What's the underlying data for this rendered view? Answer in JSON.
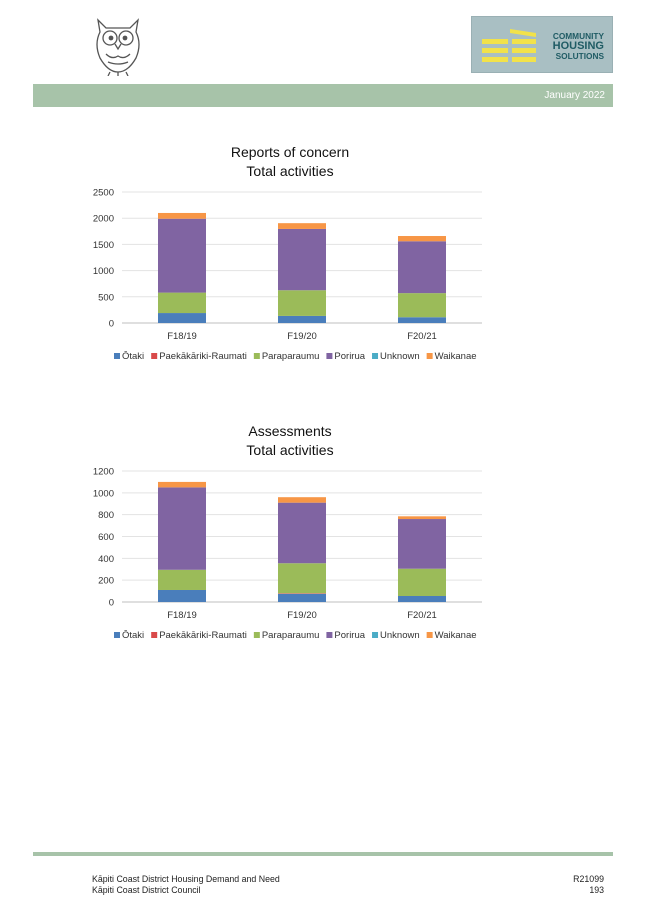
{
  "header": {
    "owl_logo": "owl-logo",
    "brand": {
      "line1": "COMMUNITY",
      "line2": "HOUSING",
      "line3": "SOLUTIONS"
    },
    "date": "January 2022"
  },
  "charts": [
    {
      "title_line1": "Reports of concern",
      "title_line2": "Total activities"
    },
    {
      "title_line1": "Assessments",
      "title_line2": "Total activities"
    }
  ],
  "chart_data": [
    {
      "type": "bar",
      "stacked": true,
      "title": "Reports of concern Total activities",
      "categories": [
        "F18/19",
        "F19/20",
        "F20/21"
      ],
      "ylim": [
        0,
        2500
      ],
      "yticks": [
        0,
        500,
        1000,
        1500,
        2000,
        2500
      ],
      "grid": true,
      "legend": "bottom",
      "series": [
        {
          "name": "Ōtaki",
          "color": "#4a7ebb",
          "values": [
            190,
            135,
            110
          ]
        },
        {
          "name": "Paekākāriki-Raumati",
          "color": "#d94a4a",
          "values": [
            0,
            0,
            0
          ]
        },
        {
          "name": "Paraparaumu",
          "color": "#9bbb59",
          "values": [
            390,
            490,
            460
          ]
        },
        {
          "name": "Porirua",
          "color": "#8064a2",
          "values": [
            1410,
            1170,
            990
          ]
        },
        {
          "name": "Unknown",
          "color": "#4bacc6",
          "values": [
            0,
            0,
            0
          ]
        },
        {
          "name": "Waikanae",
          "color": "#f79646",
          "values": [
            110,
            110,
            100
          ]
        }
      ]
    },
    {
      "type": "bar",
      "stacked": true,
      "title": "Assessments Total activities",
      "categories": [
        "F18/19",
        "F19/20",
        "F20/21"
      ],
      "ylim": [
        0,
        1200
      ],
      "yticks": [
        0,
        200,
        400,
        600,
        800,
        1000,
        1200
      ],
      "grid": true,
      "legend": "bottom",
      "series": [
        {
          "name": "Ōtaki",
          "color": "#4a7ebb",
          "values": [
            110,
            75,
            55
          ]
        },
        {
          "name": "Paekākāriki-Raumati",
          "color": "#d94a4a",
          "values": [
            0,
            5,
            0
          ]
        },
        {
          "name": "Paraparaumu",
          "color": "#9bbb59",
          "values": [
            185,
            275,
            250
          ]
        },
        {
          "name": "Porirua",
          "color": "#8064a2",
          "values": [
            755,
            555,
            455
          ]
        },
        {
          "name": "Unknown",
          "color": "#4bacc6",
          "values": [
            0,
            0,
            0
          ]
        },
        {
          "name": "Waikanae",
          "color": "#f79646",
          "values": [
            50,
            50,
            25
          ]
        }
      ]
    }
  ],
  "footer": {
    "doc_title": "Kāpiti Coast District Housing Demand and Need",
    "org": "Kāpiti Coast District Council",
    "ref": "R21099",
    "page": "193"
  }
}
